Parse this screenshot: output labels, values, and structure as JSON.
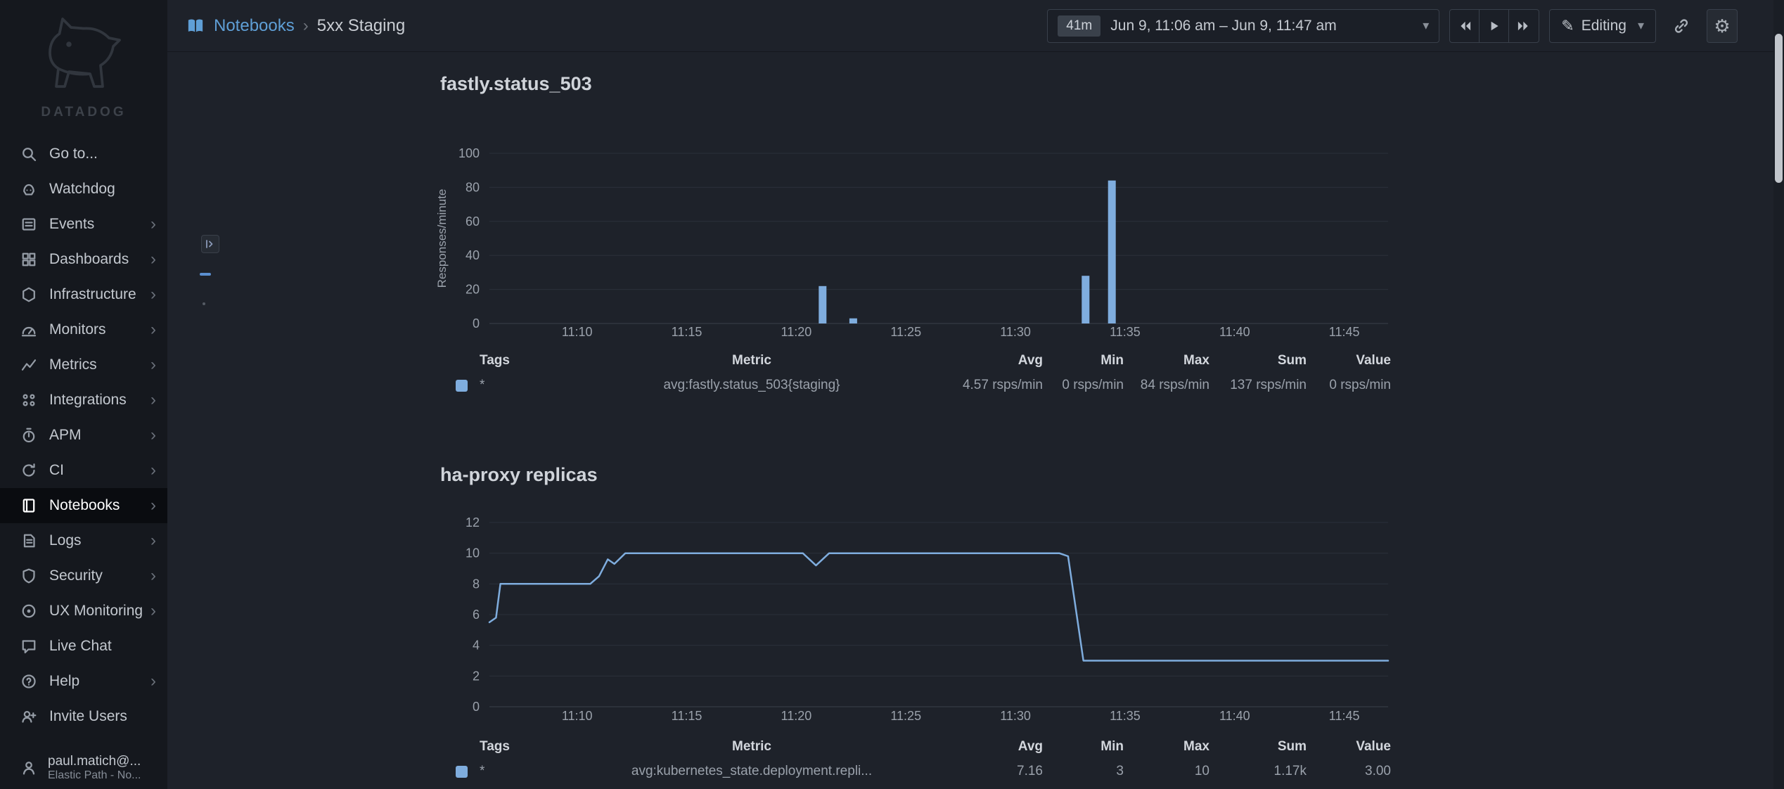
{
  "sidebar": {
    "logo_text": "DATADOG",
    "items": [
      {
        "label": "Go to...",
        "icon": "search-icon",
        "chevron": false,
        "active": false
      },
      {
        "label": "Watchdog",
        "icon": "watchdog-icon",
        "chevron": false,
        "active": false
      },
      {
        "label": "Events",
        "icon": "events-icon",
        "chevron": true,
        "active": false
      },
      {
        "label": "Dashboards",
        "icon": "dashboards-icon",
        "chevron": true,
        "active": false
      },
      {
        "label": "Infrastructure",
        "icon": "infrastructure-icon",
        "chevron": true,
        "active": false
      },
      {
        "label": "Monitors",
        "icon": "monitors-icon",
        "chevron": true,
        "active": false
      },
      {
        "label": "Metrics",
        "icon": "metrics-icon",
        "chevron": true,
        "active": false
      },
      {
        "label": "Integrations",
        "icon": "integrations-icon",
        "chevron": true,
        "active": false
      },
      {
        "label": "APM",
        "icon": "apm-icon",
        "chevron": true,
        "active": false
      },
      {
        "label": "CI",
        "icon": "ci-icon",
        "chevron": true,
        "active": false
      },
      {
        "label": "Notebooks",
        "icon": "notebooks-icon",
        "chevron": true,
        "active": true
      },
      {
        "label": "Logs",
        "icon": "logs-icon",
        "chevron": true,
        "active": false
      },
      {
        "label": "Security",
        "icon": "security-icon",
        "chevron": true,
        "active": false
      },
      {
        "label": "UX Monitoring",
        "icon": "ux-monitoring-icon",
        "chevron": true,
        "active": false
      },
      {
        "label": "Live Chat",
        "icon": "live-chat-icon",
        "chevron": false,
        "active": false
      },
      {
        "label": "Help",
        "icon": "help-icon",
        "chevron": true,
        "active": false
      },
      {
        "label": "Invite Users",
        "icon": "invite-users-icon",
        "chevron": false,
        "active": false
      }
    ],
    "user": {
      "name": "paul.matich@...",
      "org": "Elastic Path - No..."
    }
  },
  "header": {
    "breadcrumb": {
      "root": "Notebooks",
      "current": "5xx Staging"
    },
    "time_range": {
      "duration": "41m",
      "label": "Jun 9, 11:06 am – Jun 9, 11:47 am"
    },
    "mode": "Editing"
  },
  "colors": {
    "series_blue": "#7fadde",
    "link_blue": "#5f9fd6",
    "background": "#1e222a",
    "sidebar_background": "#15181e"
  },
  "chart_data": [
    {
      "type": "bar",
      "title": "fastly.status_503",
      "ylabel": "Responses/minute",
      "xlabel": "",
      "ylim": [
        0,
        100
      ],
      "yticks": [
        0,
        20,
        40,
        60,
        80,
        100
      ],
      "grid": true,
      "legend_position": "table-below",
      "x_axis": {
        "start": "11:06",
        "end": "11:47",
        "total_minutes": 41,
        "tick_minutes": [
          4,
          9,
          14,
          19,
          24,
          29,
          34,
          39
        ],
        "tick_labels": [
          "11:10",
          "11:15",
          "11:20",
          "11:25",
          "11:30",
          "11:35",
          "11:40",
          "11:45"
        ]
      },
      "series": [
        {
          "name": "avg:fastly.status_503{staging}",
          "color": "#7fadde",
          "points": [
            {
              "minute": 15.2,
              "value": 22
            },
            {
              "minute": 16.6,
              "value": 3
            },
            {
              "minute": 27.2,
              "value": 28
            },
            {
              "minute": 28.4,
              "value": 84
            }
          ]
        }
      ],
      "summary_table": {
        "headers": [
          "Tags",
          "Metric",
          "Avg",
          "Min",
          "Max",
          "Sum",
          "Value"
        ],
        "rows": [
          {
            "swatch": "#7fadde",
            "tags": "*",
            "metric": "avg:fastly.status_503{staging}",
            "avg": "4.57 rsps/min",
            "min": "0 rsps/min",
            "max": "84 rsps/min",
            "sum": "137 rsps/min",
            "value": "0 rsps/min"
          }
        ]
      }
    },
    {
      "type": "line",
      "title": "ha-proxy replicas",
      "ylabel": "",
      "xlabel": "",
      "ylim": [
        0,
        12
      ],
      "yticks": [
        0,
        2,
        4,
        6,
        8,
        10,
        12
      ],
      "grid": true,
      "legend_position": "table-below",
      "x_axis": {
        "start": "11:06",
        "end": "11:47",
        "total_minutes": 41,
        "tick_minutes": [
          4,
          9,
          14,
          19,
          24,
          29,
          34,
          39
        ],
        "tick_labels": [
          "11:10",
          "11:15",
          "11:20",
          "11:25",
          "11:30",
          "11:35",
          "11:40",
          "11:45"
        ]
      },
      "series": [
        {
          "name": "avg:kubernetes_state.deployment.repli...",
          "color": "#7fadde",
          "points": [
            [
              0,
              5.5
            ],
            [
              0.3,
              5.8
            ],
            [
              0.5,
              8
            ],
            [
              4.6,
              8
            ],
            [
              5.0,
              8.5
            ],
            [
              5.4,
              9.6
            ],
            [
              5.7,
              9.3
            ],
            [
              6.2,
              10
            ],
            [
              14.3,
              10
            ],
            [
              14.9,
              9.2
            ],
            [
              15.5,
              10
            ],
            [
              26.0,
              10
            ],
            [
              26.4,
              9.8
            ],
            [
              27.1,
              3
            ],
            [
              41,
              3
            ]
          ]
        }
      ],
      "summary_table": {
        "headers": [
          "Tags",
          "Metric",
          "Avg",
          "Min",
          "Max",
          "Sum",
          "Value"
        ],
        "rows": [
          {
            "swatch": "#7fadde",
            "tags": "*",
            "metric": "avg:kubernetes_state.deployment.repli...",
            "avg": "7.16",
            "min": "3",
            "max": "10",
            "sum": "1.17k",
            "value": "3.00"
          }
        ]
      }
    }
  ]
}
